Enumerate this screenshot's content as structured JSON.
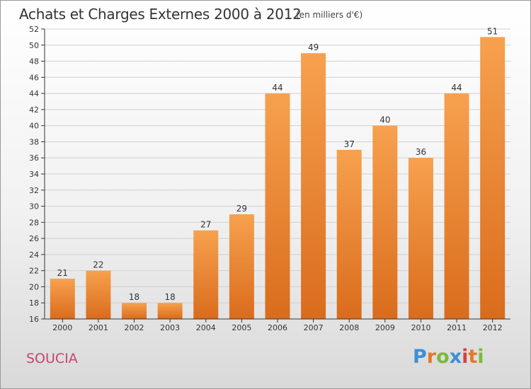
{
  "header": {
    "title": "Achats et Charges Externes 2000 à 2012",
    "unit": "(en milliers d'€)"
  },
  "footer": {
    "commune": "SOUCIA",
    "logo": "Proxiti",
    "logo_colors": [
      "#3d8fd6",
      "#e3792c",
      "#7aba3a",
      "#3d8fd6",
      "#d6433f",
      "#e3792c",
      "#7aba3a"
    ]
  },
  "colors": {
    "bar_top": "#f7a14e",
    "bar_bottom": "#d96c1c",
    "grid": "#d0d0d0",
    "axis": "#333333"
  },
  "chart_data": {
    "type": "bar",
    "title": "Achats et Charges Externes 2000 à 2012",
    "subtitle": "(en milliers d'€)",
    "categories": [
      "2000",
      "2001",
      "2002",
      "2003",
      "2004",
      "2005",
      "2006",
      "2007",
      "2008",
      "2009",
      "2010",
      "2011",
      "2012"
    ],
    "values": [
      21,
      22,
      18,
      18,
      27,
      29,
      44,
      49,
      37,
      40,
      36,
      44,
      51
    ],
    "ylim": [
      16,
      52
    ],
    "yticks": [
      16,
      18,
      20,
      22,
      24,
      26,
      28,
      30,
      32,
      34,
      36,
      38,
      40,
      42,
      44,
      46,
      48,
      50,
      52
    ],
    "grid": true,
    "xlabel": "",
    "ylabel": ""
  }
}
